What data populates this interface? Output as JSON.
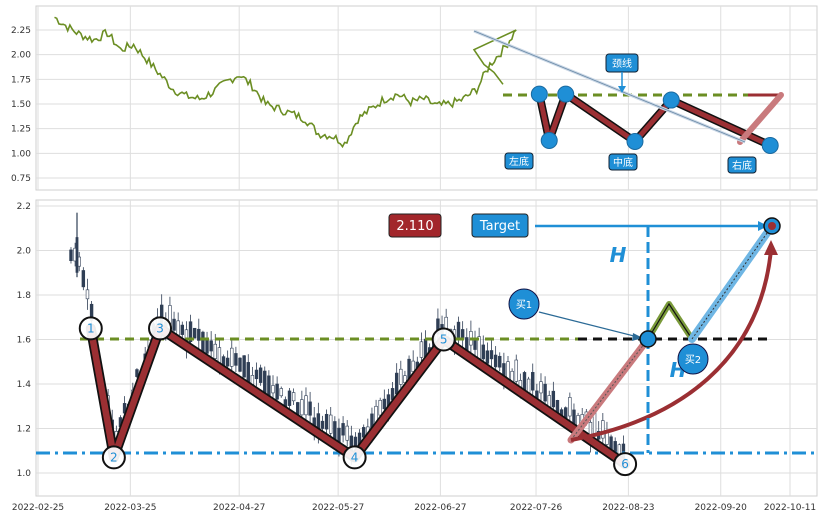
{
  "colors": {
    "price_line": "#6b8e23",
    "pattern_red": "#9b2f33",
    "pattern_edge": "#111111",
    "marker_blue": "#1f8fd6",
    "neckline": "#6b8e23",
    "support": "#1f8fd6",
    "badge_red": "#a2262b",
    "badge_blue": "#1f8fd6",
    "candle": "#2f3e55"
  },
  "chart_data": [
    {
      "type": "line",
      "panel": "top",
      "ylim": [
        0.6,
        2.45
      ],
      "yticks": [
        "0.75",
        "1.00",
        "1.25",
        "1.50",
        "1.75",
        "2.00",
        "2.25"
      ],
      "grid": true,
      "series": [
        {
          "x": [
            "2022-03-02",
            "2022-03-06",
            "2022-03-10",
            "2022-03-14",
            "2022-03-18",
            "2022-03-22",
            "2022-03-26",
            "2022-03-30",
            "2022-04-03",
            "2022-04-07",
            "2022-04-11",
            "2022-04-15",
            "2022-04-19",
            "2022-04-23",
            "2022-04-27",
            "2022-05-01",
            "2022-05-05",
            "2022-05-09",
            "2022-05-13",
            "2022-05-17",
            "2022-05-21",
            "2022-05-25",
            "2022-05-29",
            "2022-06-02",
            "2022-06-06",
            "2022-06-10",
            "2022-06-14",
            "2022-06-18",
            "2022-06-22",
            "2022-06-26",
            "2022-06-30",
            "2022-07-04",
            "2022-07-08",
            "2022-07-12",
            "2022-07-16",
            "2022-07-20"
          ],
          "values": [
            2.38,
            2.28,
            2.2,
            2.15,
            2.22,
            2.05,
            2.1,
            1.95,
            1.8,
            1.65,
            1.58,
            1.55,
            1.62,
            1.72,
            1.8,
            1.68,
            1.5,
            1.45,
            1.4,
            1.35,
            1.2,
            1.18,
            1.1,
            1.35,
            1.45,
            1.55,
            1.6,
            1.52,
            1.55,
            1.48,
            1.5,
            1.55,
            1.65,
            1.9,
            2.05,
            2.25
          ]
        }
      ],
      "pattern": {
        "points": [
          {
            "x": "2022-07-27",
            "y": 1.6
          },
          {
            "x": "2022-07-30",
            "y": 1.13
          },
          {
            "x": "2022-08-04",
            "y": 1.6
          },
          {
            "x": "2022-08-25",
            "y": 1.12
          },
          {
            "x": "2022-09-05",
            "y": 1.54
          },
          {
            "x": "2022-10-05",
            "y": 1.08
          }
        ],
        "neckline_y": 1.6,
        "target_point": {
          "x": "2022-10-20",
          "y": 1.6
        },
        "labels": [
          {
            "text": "左底",
            "x": "2022-07-30",
            "y": 0.92
          },
          {
            "text": "中底",
            "x": "2022-08-25",
            "y": 0.92
          },
          {
            "text": "右底",
            "x": "2022-10-05",
            "y": 0.89
          },
          {
            "text": "颈线",
            "x": "2022-08-25",
            "y": 1.91
          }
        ]
      }
    },
    {
      "type": "candlestick",
      "panel": "bottom",
      "ylim": [
        0.93,
        2.22
      ],
      "yticks": [
        "1.0",
        "1.2",
        "1.4",
        "1.6",
        "1.8",
        "2.0",
        "2.2"
      ],
      "xticks": [
        "2022-02-25",
        "2022-03-25",
        "2022-04-27",
        "2022-05-27",
        "2022-06-27",
        "2022-07-26",
        "2022-08-23",
        "2022-09-20",
        "2022-10-11"
      ],
      "grid": true,
      "pattern": {
        "points": [
          {
            "label": "1",
            "x": "2022-03-13",
            "y": 1.65
          },
          {
            "label": "2",
            "x": "2022-03-20",
            "y": 1.07
          },
          {
            "label": "3",
            "x": "2022-04-03",
            "y": 1.65
          },
          {
            "label": "4",
            "x": "2022-06-01",
            "y": 1.07
          },
          {
            "label": "5",
            "x": "2022-06-28",
            "y": 1.6
          },
          {
            "label": "6",
            "x": "2022-08-22",
            "y": 1.04
          }
        ],
        "neckline_y": 1.6,
        "support_y": 1.085,
        "target_value": "2.110",
        "target_label": "Target",
        "height_label": "H",
        "buy_labels": [
          "买1",
          "买2"
        ],
        "projection": [
          {
            "x": "2022-08-22",
            "y": 1.12
          },
          {
            "x": "2022-09-10",
            "y": 1.6
          },
          {
            "x": "2022-09-15",
            "y": 1.75
          },
          {
            "x": "2022-09-22",
            "y": 1.6
          },
          {
            "x": "2022-10-10",
            "y": 2.11
          }
        ]
      }
    }
  ]
}
